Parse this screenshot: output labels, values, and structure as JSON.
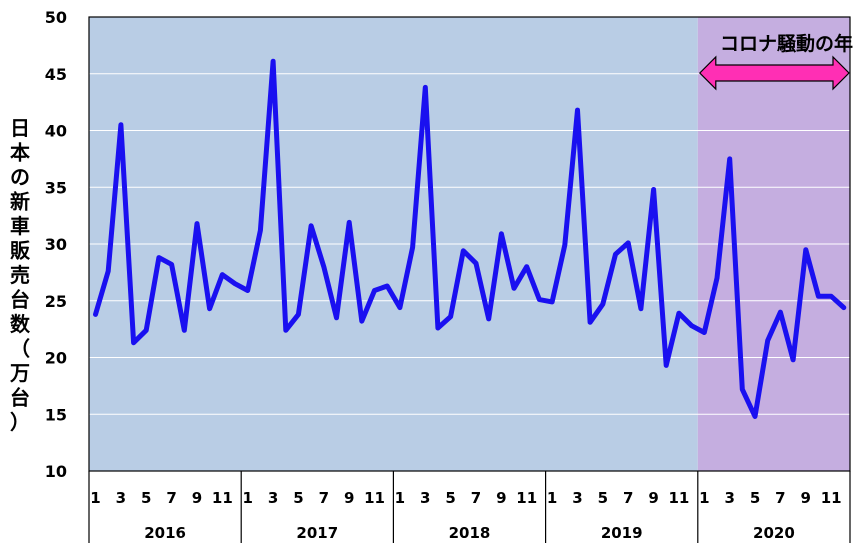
{
  "chart_data": {
    "type": "line",
    "title": "",
    "xlabel": "",
    "ylabel": "日本の新車販売台数（万台）",
    "ylim": [
      10,
      50
    ],
    "yticks": [
      10,
      15,
      20,
      25,
      30,
      35,
      40,
      45,
      50
    ],
    "grid": true,
    "years": [
      "2016",
      "2017",
      "2018",
      "2019",
      "2020"
    ],
    "month_tick_labels": [
      "1",
      "3",
      "5",
      "7",
      "9",
      "11"
    ],
    "month_tick_values": [
      1,
      3,
      5,
      7,
      9,
      11
    ],
    "highlight": {
      "label": "コロナ騒動の年",
      "year": "2020",
      "background_color": "#c5aee0",
      "arrow_color": "#ff2fb4"
    },
    "background_color": "#b9cde5",
    "line_color": "#1a10f0",
    "series": [
      {
        "values": [
          23.8,
          27.6,
          40.5,
          21.3,
          22.4,
          28.8,
          28.2,
          22.4,
          31.8,
          24.3,
          27.3,
          26.5,
          25.9,
          31.2,
          46.1,
          22.4,
          23.8,
          31.6,
          28.0,
          23.5,
          31.9,
          23.2,
          25.9,
          26.3,
          24.4,
          29.7,
          43.8,
          22.6,
          23.6,
          29.4,
          28.3,
          23.4,
          30.9,
          26.1,
          28.0,
          25.1,
          24.9,
          29.9,
          41.8,
          23.1,
          24.7,
          29.1,
          30.1,
          24.3,
          34.8,
          19.3,
          23.9,
          22.8,
          22.2,
          27.0,
          37.5,
          17.2,
          14.8,
          21.5,
          24.0,
          19.8,
          29.5,
          25.4,
          25.4,
          24.4
        ]
      }
    ]
  }
}
